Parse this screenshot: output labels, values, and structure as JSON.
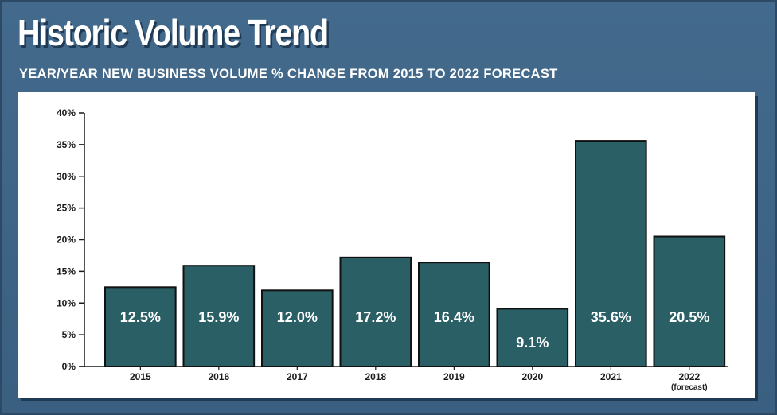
{
  "title": "Historic Volume Trend",
  "subtitle": "YEAR/YEAR NEW BUSINESS VOLUME % CHANGE FROM 2015 TO 2022 FORECAST",
  "colors": {
    "background": "#3d6283",
    "bar": "#2b5f66",
    "bar_outline": "#111111",
    "panel": "#ffffff"
  },
  "chart_data": {
    "type": "bar",
    "title": "Historic Volume Trend",
    "subtitle": "YEAR/YEAR NEW BUSINESS VOLUME % CHANGE FROM 2015 TO 2022 FORECAST",
    "xlabel": "",
    "ylabel": "",
    "categories": [
      "2015",
      "2016",
      "2017",
      "2018",
      "2019",
      "2020",
      "2021",
      "2022"
    ],
    "category_notes": [
      "",
      "",
      "",
      "",
      "",
      "",
      "",
      "(forecast)"
    ],
    "values": [
      12.5,
      15.9,
      12.0,
      17.2,
      16.4,
      9.1,
      35.6,
      20.5
    ],
    "value_labels": [
      "12.5%",
      "15.9%",
      "12.0%",
      "17.2%",
      "16.4%",
      "9.1%",
      "35.6%",
      "20.5%"
    ],
    "ylim": [
      0,
      40
    ],
    "yticks": [
      0,
      5,
      10,
      15,
      20,
      25,
      30,
      35,
      40
    ],
    "ytick_labels": [
      "0%",
      "5%",
      "10%",
      "15%",
      "20%",
      "25%",
      "30%",
      "35%",
      "40%"
    ],
    "grid": false,
    "legend": "none"
  }
}
